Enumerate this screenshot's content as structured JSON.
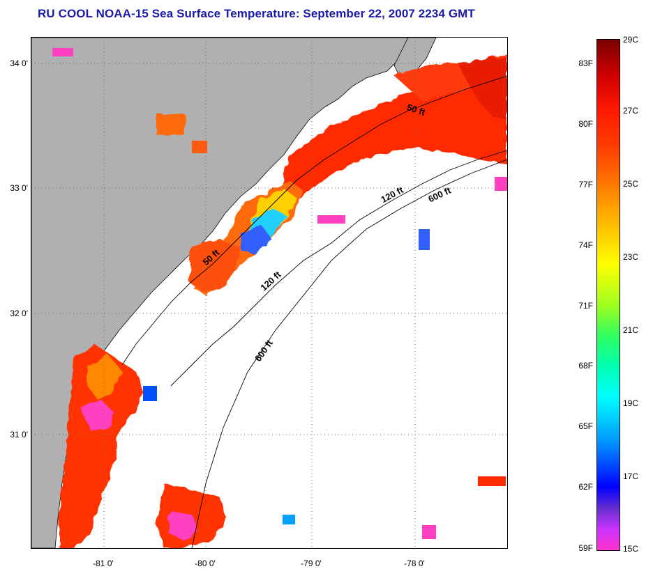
{
  "title": "RU COOL  NOAA-15  Sea Surface Temperature:  September 22, 2007 2234 GMT",
  "map": {
    "latitude_labels": [
      "34 0'",
      "33 0'",
      "32 0'",
      "31 0'"
    ],
    "longitude_labels": [
      "-81 0'",
      "-80 0'",
      "-79 0'",
      "-78 0'"
    ],
    "contour_labels": {
      "c50_a": "50 ft",
      "c50_b": "50 ft",
      "c120_a": "120 ft",
      "c120_b": "120 ft",
      "c600_a": "600 ft",
      "c600_b": "600 ft"
    },
    "colors": {
      "land": "#b0b0b0",
      "no_data": "#ffffff",
      "grid": "#666666"
    }
  },
  "colorbar": {
    "fahrenheit": [
      "83F",
      "80F",
      "77F",
      "74F",
      "71F",
      "68F",
      "65F",
      "62F",
      "59F"
    ],
    "celsius": [
      "29C",
      "27C",
      "25C",
      "23C",
      "21C",
      "19C",
      "17C",
      "15C"
    ]
  }
}
